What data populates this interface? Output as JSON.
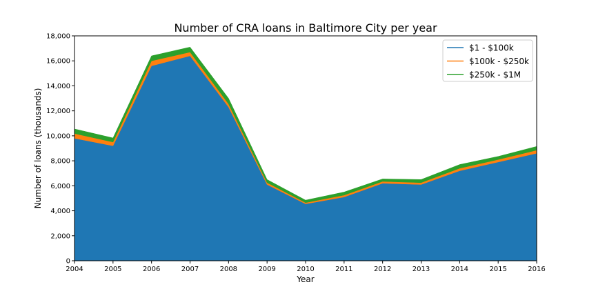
{
  "chart_data": {
    "type": "area",
    "title": "Number of CRA loans in Baltimore City per year",
    "xlabel": "Year",
    "ylabel": "Number of loans (thousands)",
    "x": [
      2004,
      2005,
      2006,
      2007,
      2008,
      2009,
      2010,
      2011,
      2012,
      2013,
      2014,
      2015,
      2016
    ],
    "x_tick_labels": [
      "2004",
      "2005",
      "2006",
      "2007",
      "2008",
      "2009",
      "2010",
      "2011",
      "2012",
      "2013",
      "2014",
      "2015",
      "2016"
    ],
    "y_tick_labels": [
      "0",
      "2,000",
      "4,000",
      "6,000",
      "8,000",
      "10,000",
      "12,000",
      "14,000",
      "16,000",
      "18,000"
    ],
    "xlim": [
      2004,
      2016
    ],
    "ylim": [
      0,
      18000
    ],
    "stacked": true,
    "grid": false,
    "legend_position": "top-right",
    "series": [
      {
        "name": "$1 - $100k",
        "color": "#1f77b4",
        "values": [
          9800,
          9200,
          15600,
          16400,
          12300,
          6100,
          4550,
          5100,
          6200,
          6100,
          7200,
          7900,
          8600
        ]
      },
      {
        "name": "$100k - $250k",
        "color": "#ff7f0e",
        "values": [
          380,
          300,
          400,
          300,
          250,
          150,
          100,
          150,
          150,
          150,
          200,
          200,
          250
        ]
      },
      {
        "name": "$250k - $1M",
        "color": "#2ca02c",
        "values": [
          370,
          330,
          400,
          400,
          450,
          250,
          200,
          250,
          200,
          250,
          300,
          250,
          300
        ]
      }
    ]
  }
}
